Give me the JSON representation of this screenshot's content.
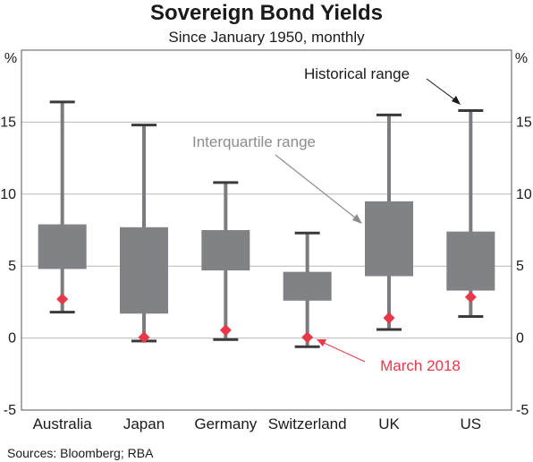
{
  "chart_data": {
    "type": "boxplot",
    "title": "Sovereign Bond Yields",
    "subtitle": "Since January 1950, monthly",
    "ylabel_left": "%",
    "ylabel_right": "%",
    "ylim": [
      -5,
      20
    ],
    "yticks": [
      -5,
      0,
      5,
      10,
      15
    ],
    "ytick_labels": [
      "-5",
      "0",
      "5",
      "10",
      "15"
    ],
    "grid": true,
    "categories": [
      "Australia",
      "Japan",
      "Germany",
      "Switzerland",
      "UK",
      "US"
    ],
    "series": [
      {
        "name": "Historical range",
        "min": [
          1.8,
          -0.2,
          -0.1,
          -0.6,
          0.6,
          1.5
        ],
        "max": [
          16.4,
          14.8,
          10.8,
          7.3,
          15.5,
          15.8
        ]
      },
      {
        "name": "Interquartile range",
        "q1": [
          4.8,
          1.7,
          4.7,
          2.6,
          4.3,
          3.3
        ],
        "q3": [
          7.9,
          7.7,
          7.5,
          4.6,
          9.5,
          7.4
        ]
      },
      {
        "name": "March 2018",
        "values": [
          2.7,
          0.05,
          0.55,
          0.05,
          1.4,
          2.85
        ]
      }
    ],
    "annotations": {
      "historical_range": "Historical range",
      "interquartile_range": "Interquartile range",
      "march_2018": "March 2018"
    },
    "source": "Sources: Bloomberg; RBA"
  },
  "colors": {
    "box": "#808285",
    "whisker": "#7a7c80",
    "cap": "#3a3a3c",
    "marker": "#e8394a",
    "grid": "#b8b8b8",
    "frame": "#555555",
    "annotation_gray": "#8a8c90",
    "annotation_dark": "#1a1a1a",
    "annotation_red": "#e8394a"
  }
}
